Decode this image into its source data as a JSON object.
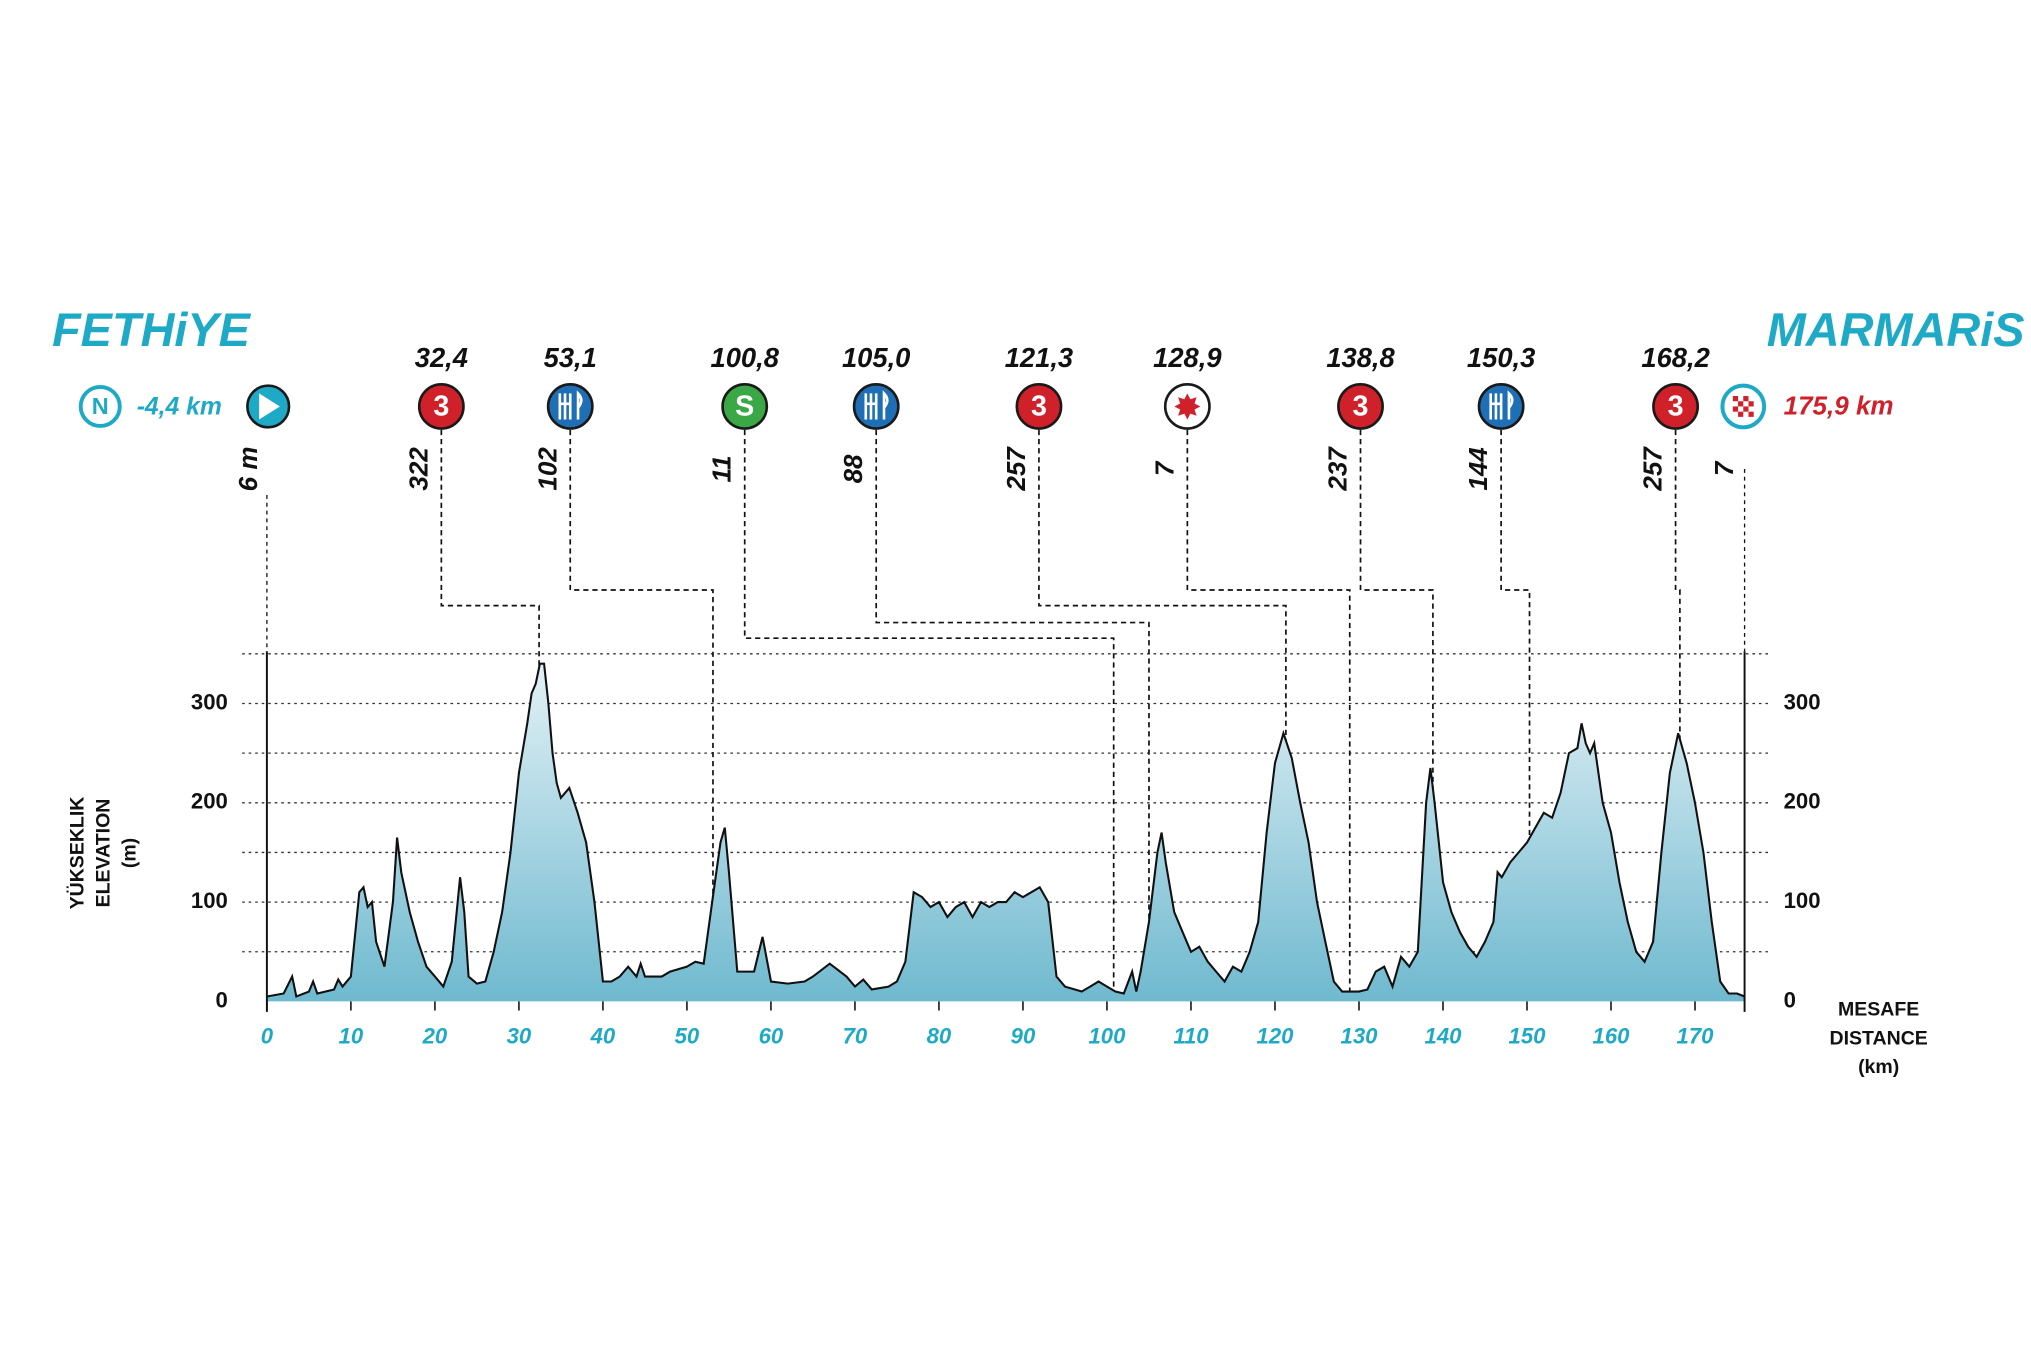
{
  "chart_data": {
    "type": "area",
    "start_town": "FETHiYE",
    "finish_town": "MARMARiS",
    "start": {
      "badge": "N",
      "km_label": "-4,4 km",
      "elevation_label": "6 m"
    },
    "finish": {
      "km_label": "175,9 km",
      "elevation": 7
    },
    "y_label": [
      "YÜKSEKLIK",
      "ELEVATION",
      "(m)"
    ],
    "x_label": [
      "MESAFE",
      "DISTANCE",
      "(km)"
    ],
    "xlim": [
      0,
      175.9
    ],
    "xticks": [
      0,
      10,
      20,
      30,
      40,
      50,
      60,
      70,
      80,
      90,
      100,
      110,
      120,
      130,
      140,
      150,
      160,
      170
    ],
    "ylim": [
      0,
      350
    ],
    "yticks": [
      0,
      100,
      200,
      300
    ],
    "grid": [
      50,
      100,
      150,
      200,
      250,
      300,
      350
    ],
    "color": "#6fb9cf",
    "markers": [
      {
        "km": 32.4,
        "km_label": "32,4",
        "elevation": 322,
        "kind": "climb",
        "badge": "3"
      },
      {
        "km": 53.1,
        "km_label": "53,1",
        "elevation": 102,
        "kind": "feed"
      },
      {
        "km": 100.8,
        "km_label": "100,8",
        "elevation": 11,
        "kind": "sprint",
        "badge": "S"
      },
      {
        "km": 105.0,
        "km_label": "105,0",
        "elevation": 88,
        "kind": "feed"
      },
      {
        "km": 121.3,
        "km_label": "121,3",
        "elevation": 257,
        "kind": "climb",
        "badge": "3"
      },
      {
        "km": 128.9,
        "km_label": "128,9",
        "elevation": 7,
        "kind": "bonus"
      },
      {
        "km": 138.8,
        "km_label": "138,8",
        "elevation": 237,
        "kind": "climb",
        "badge": "3"
      },
      {
        "km": 150.3,
        "km_label": "150,3",
        "elevation": 144,
        "kind": "feed"
      },
      {
        "km": 168.2,
        "km_label": "168,2",
        "elevation": 257,
        "kind": "climb",
        "badge": "3"
      }
    ],
    "x": [
      0,
      2,
      3,
      3.5,
      5,
      5.5,
      6,
      8,
      8.5,
      9,
      10,
      11,
      11.5,
      12,
      12.5,
      13,
      14,
      15,
      15.5,
      16,
      17,
      18,
      19,
      20,
      21,
      22,
      23,
      23.5,
      24,
      25,
      26,
      27,
      28,
      29,
      30,
      31,
      31.5,
      32,
      32.5,
      33,
      33.5,
      34,
      34.5,
      35,
      36,
      37,
      38,
      39,
      40,
      41,
      42,
      43,
      44,
      44.5,
      45,
      47,
      48,
      50,
      51,
      52,
      53,
      54,
      54.5,
      55,
      56,
      58,
      59,
      60,
      62,
      64,
      65,
      67,
      69,
      70,
      71,
      72,
      74,
      75,
      76,
      77,
      78,
      79,
      80,
      81,
      82,
      83,
      84,
      85,
      86,
      87,
      88,
      89,
      90,
      91,
      92,
      93,
      94,
      95,
      97,
      98,
      99,
      100,
      101,
      102,
      103,
      103.5,
      104,
      105,
      106,
      106.5,
      107,
      108,
      109,
      110,
      111,
      112,
      113,
      114,
      115,
      116,
      117,
      118,
      119,
      120,
      121,
      122,
      123,
      124,
      125,
      126,
      127,
      128,
      130,
      131,
      132,
      133,
      134,
      135,
      136,
      137,
      138,
      138.5,
      139,
      140,
      141,
      142,
      143,
      144,
      145,
      146,
      146.5,
      147,
      148,
      149,
      150,
      151,
      152,
      153,
      154,
      155,
      156,
      156.5,
      157,
      157.5,
      158,
      159,
      160,
      161,
      162,
      163,
      164,
      165,
      166,
      167,
      168,
      169,
      170,
      171,
      172,
      173,
      174,
      175,
      175.9
    ],
    "values": [
      5,
      8,
      25,
      5,
      10,
      20,
      8,
      12,
      22,
      15,
      25,
      110,
      115,
      95,
      100,
      60,
      35,
      100,
      165,
      130,
      90,
      60,
      35,
      25,
      15,
      40,
      125,
      90,
      25,
      18,
      20,
      50,
      90,
      150,
      230,
      280,
      310,
      320,
      340,
      340,
      300,
      250,
      220,
      205,
      215,
      190,
      160,
      100,
      20,
      20,
      25,
      35,
      25,
      38,
      25,
      25,
      30,
      35,
      40,
      38,
      100,
      160,
      175,
      130,
      30,
      30,
      65,
      20,
      18,
      20,
      25,
      38,
      25,
      15,
      22,
      12,
      15,
      20,
      40,
      110,
      105,
      95,
      100,
      85,
      95,
      100,
      85,
      100,
      95,
      100,
      100,
      110,
      105,
      110,
      115,
      100,
      25,
      15,
      10,
      15,
      20,
      15,
      10,
      8,
      30,
      10,
      30,
      80,
      150,
      170,
      140,
      90,
      70,
      50,
      55,
      40,
      30,
      20,
      35,
      30,
      50,
      80,
      170,
      240,
      270,
      245,
      200,
      160,
      100,
      60,
      20,
      10,
      10,
      12,
      30,
      35,
      15,
      45,
      35,
      50,
      200,
      235,
      200,
      120,
      90,
      70,
      55,
      45,
      60,
      80,
      130,
      125,
      140,
      150,
      160,
      175,
      190,
      185,
      210,
      250,
      255,
      280,
      260,
      250,
      260,
      200,
      170,
      120,
      80,
      50,
      40,
      60,
      150,
      230,
      270,
      240,
      200,
      150,
      80,
      20,
      8,
      8,
      5
    ]
  }
}
